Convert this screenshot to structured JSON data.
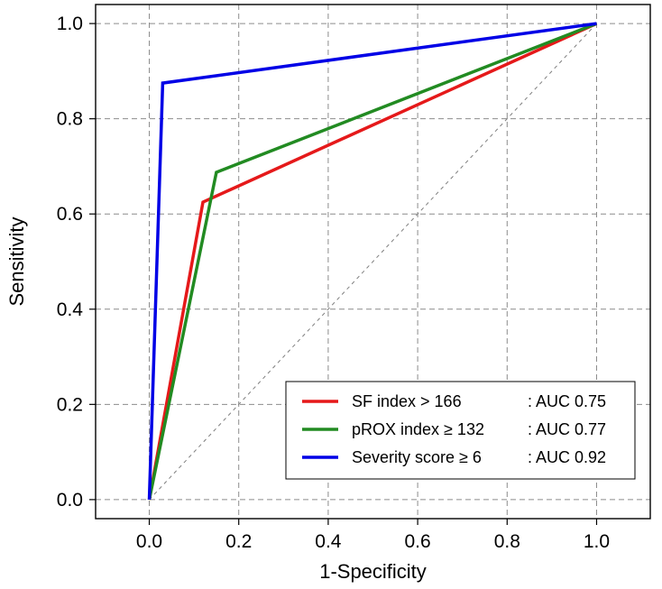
{
  "chart_data": {
    "type": "line",
    "title": "",
    "xlabel": "1-Specificity",
    "ylabel": "Sensitivity",
    "xlim": [
      -0.12,
      1.12
    ],
    "ylim": [
      0.0,
      1.0
    ],
    "x_ticks": [
      0.0,
      0.2,
      0.4,
      0.6,
      0.8,
      1.0
    ],
    "y_ticks": [
      0.0,
      0.2,
      0.4,
      0.6,
      0.8,
      1.0
    ],
    "x_tick_labels": [
      "0.0",
      "0.2",
      "0.4",
      "0.6",
      "0.8",
      "1.0"
    ],
    "y_tick_labels": [
      "0.0",
      "0.2",
      "0.4",
      "0.6",
      "0.8",
      "1.0"
    ],
    "grid": true,
    "reference_line": {
      "x": [
        0.0,
        1.0
      ],
      "y": [
        0.0,
        1.0
      ],
      "color": "#7f7f7f",
      "style": "dashed"
    },
    "legend_position": "bottom-right",
    "series": [
      {
        "name": "SF index > 166",
        "auc_label": ": AUC 0.75",
        "color": "#e5191a",
        "x": [
          0.0,
          0.12,
          1.0
        ],
        "y": [
          0.0,
          0.625,
          1.0
        ]
      },
      {
        "name": "pROX index ≥ 132",
        "auc_label": ": AUC 0.77",
        "color": "#228b22",
        "x": [
          0.0,
          0.15,
          1.0
        ],
        "y": [
          0.0,
          0.6875,
          1.0
        ]
      },
      {
        "name": "Severity score ≥ 6",
        "auc_label": ": AUC 0.92",
        "color": "#0000e6",
        "x": [
          0.0,
          0.03,
          1.0
        ],
        "y": [
          0.0,
          0.875,
          1.0
        ]
      }
    ]
  }
}
